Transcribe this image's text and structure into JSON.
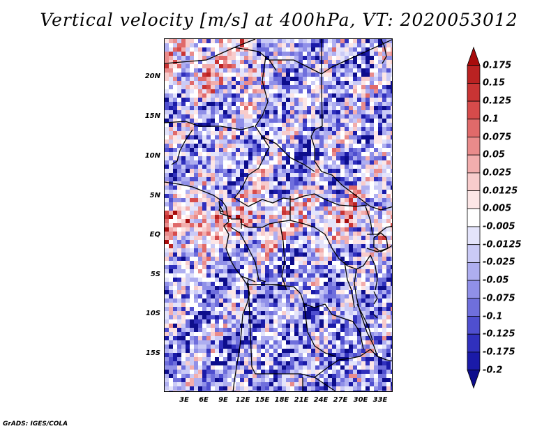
{
  "title": "Vertical velocity [m/s] at 400hPa, VT: 2020053012",
  "footer": "GrADS: IGES/COLA",
  "variable": "Vertical velocity",
  "units": "m/s",
  "level": "400hPa",
  "valid_time": "2020053012",
  "map": {
    "region": "Central Africa",
    "lat_range": [
      -20,
      24
    ],
    "lon_range": [
      0,
      35
    ],
    "lat_labels": [
      "20N",
      "15N",
      "10N",
      "5N",
      "EQ",
      "5S",
      "10S",
      "15S"
    ],
    "lon_labels": [
      "3E",
      "6E",
      "9E",
      "12E",
      "15E",
      "18E",
      "21E",
      "24E",
      "27E",
      "30E",
      "33E"
    ]
  },
  "colorbar": {
    "labels": [
      "0.175",
      "0.15",
      "0.125",
      "0.1",
      "0.075",
      "0.05",
      "0.025",
      "0.0125",
      "0.005",
      "-0.005",
      "-0.0125",
      "-0.025",
      "-0.05",
      "-0.075",
      "-0.1",
      "-0.125",
      "-0.175",
      "-0.2"
    ],
    "colors": [
      "#a80c0c",
      "#ba2222",
      "#c93434",
      "#d64b4b",
      "#e06a6a",
      "#e98b8b",
      "#f2adad",
      "#f8cccc",
      "#fce6e6",
      "#ffffff",
      "#e4e4fb",
      "#cacaf6",
      "#aeaef0",
      "#9090e8",
      "#6f6fdc",
      "#4f4fcf",
      "#3030bd",
      "#1a1aa8",
      "#0d0d8c"
    ]
  }
}
